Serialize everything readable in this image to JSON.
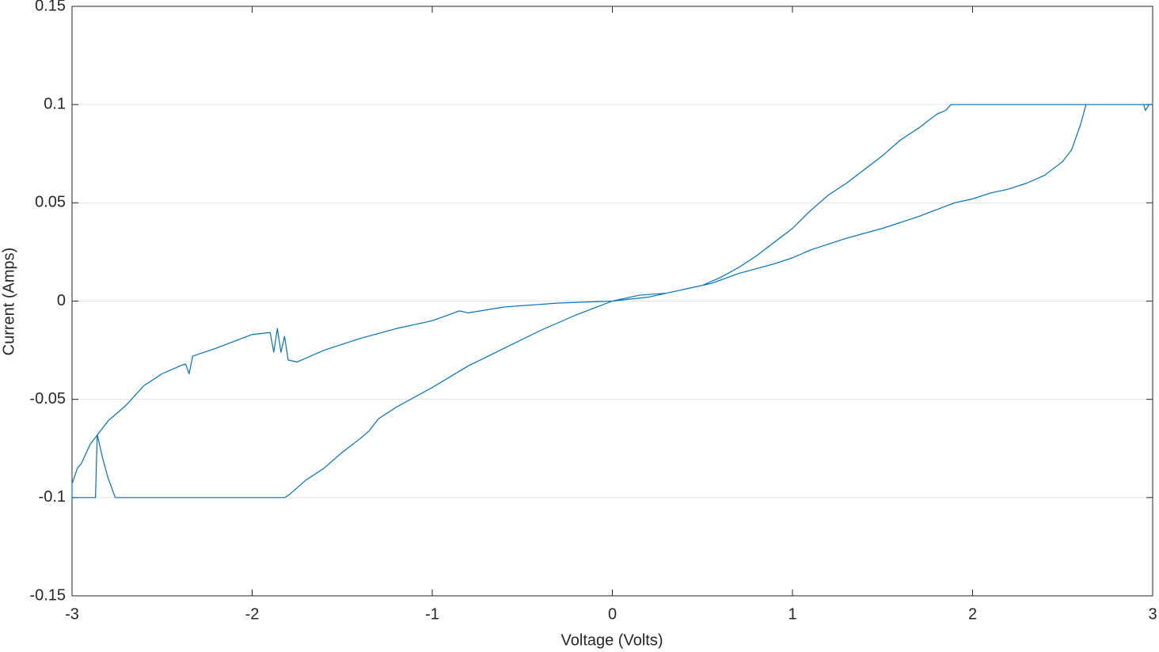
{
  "chart_data": {
    "type": "line",
    "xlabel": "Voltage (Volts)",
    "ylabel": "Current (Amps)",
    "color": "#0072bd",
    "grid": true,
    "xlim": [
      -3,
      3
    ],
    "ylim": [
      -0.15,
      0.15
    ],
    "xticks": [
      -3,
      -2,
      -1,
      0,
      1,
      2,
      3
    ],
    "yticks": [
      -0.15,
      -0.1,
      -0.05,
      0,
      0.05,
      0.1,
      0.15
    ],
    "x": [
      0,
      0.2,
      0.4,
      0.55,
      0.7,
      0.9,
      1.0,
      1.1,
      1.3,
      1.5,
      1.7,
      1.9,
      2.0,
      2.1,
      2.2,
      2.3,
      2.4,
      2.5,
      2.55,
      2.6,
      2.63,
      2.8,
      2.95,
      2.96,
      2.98,
      3,
      1.88,
      1.85,
      1.8,
      1.7,
      1.6,
      1.5,
      1.4,
      1.3,
      1.2,
      1.1,
      1.0,
      0.9,
      0.8,
      0.7,
      0.6,
      0.5,
      0.3,
      0.15,
      0,
      -0.2,
      -0.4,
      -0.6,
      -0.8,
      -1.0,
      -1.2,
      -1.3,
      -1.35,
      -1.4,
      -1.5,
      -1.6,
      -1.7,
      -1.8,
      -1.82,
      -2.76,
      -2.8,
      -2.83,
      -2.86,
      -2.87,
      -3,
      -3,
      -2.97,
      -2.95,
      -2.9,
      -2.8,
      -2.7,
      -2.6,
      -2.5,
      -2.4,
      -2.37,
      -2.35,
      -2.33,
      -2.2,
      -2.0,
      -1.9,
      -1.88,
      -1.86,
      -1.84,
      -1.82,
      -1.8,
      -1.75,
      -1.6,
      -1.4,
      -1.2,
      -1.0,
      -0.85,
      -0.8,
      -0.6,
      -0.3,
      0
    ],
    "values": [
      0,
      0.002,
      0.006,
      0.009,
      0.014,
      0.019,
      0.022,
      0.026,
      0.032,
      0.037,
      0.043,
      0.05,
      0.052,
      0.055,
      0.057,
      0.06,
      0.064,
      0.071,
      0.077,
      0.09,
      0.1,
      0.1,
      0.1,
      0.097,
      0.1,
      0.1,
      0.1,
      0.097,
      0.095,
      0.088,
      0.082,
      0.074,
      0.067,
      0.06,
      0.054,
      0.046,
      0.037,
      0.03,
      0.023,
      0.017,
      0.012,
      0.008,
      0.004,
      0.003,
      0,
      -0.007,
      -0.015,
      -0.024,
      -0.033,
      -0.044,
      -0.054,
      -0.06,
      -0.066,
      -0.07,
      -0.077,
      -0.085,
      -0.091,
      -0.099,
      -0.1,
      -0.1,
      -0.09,
      -0.08,
      -0.068,
      -0.1,
      -0.1,
      -0.093,
      -0.085,
      -0.083,
      -0.073,
      -0.061,
      -0.053,
      -0.043,
      -0.037,
      -0.033,
      -0.032,
      -0.037,
      -0.028,
      -0.024,
      -0.017,
      -0.016,
      -0.026,
      -0.014,
      -0.026,
      -0.018,
      -0.03,
      -0.031,
      -0.025,
      -0.019,
      -0.014,
      -0.01,
      -0.005,
      -0.006,
      -0.003,
      -0.001,
      0
    ]
  }
}
